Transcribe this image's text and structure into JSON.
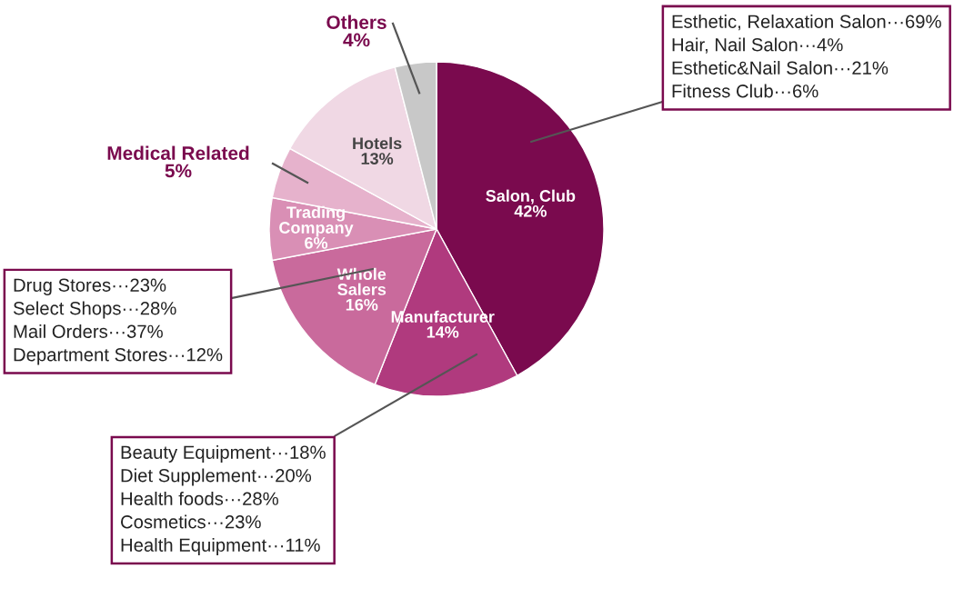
{
  "chart_data": {
    "type": "pie",
    "categories": [
      "Salon, Club",
      "Manufacturer",
      "Whole\nSalers",
      "Trading\nCompany",
      "Medical Related",
      "Hotels",
      "Others"
    ],
    "values": [
      42,
      14,
      16,
      6,
      5,
      13,
      4
    ],
    "value_labels": [
      "42%",
      "14%",
      "16%",
      "6%",
      "5%",
      "13%",
      "4%"
    ],
    "colors": [
      "#7a0a4e",
      "#b03a7e",
      "#c96a9c",
      "#d98fb5",
      "#e6b2cc",
      "#f0d8e4",
      "#c8c8c8"
    ],
    "annotations": [
      "Esthetic, Relaxation Salon···69%\nHair, Nail Salon···4%\nEsthetic&Nail Salon···21%\nFitness Club···6%",
      "Drug Stores···23%\nSelect Shops···28%\nMail Orders···37%\nDepartment Stores···12%",
      "Beauty Equipment···18%\nDiet Supplement···20%\nHealth foods···28%\nCosmetics···23%\nHealth Equipment···11%"
    ]
  }
}
